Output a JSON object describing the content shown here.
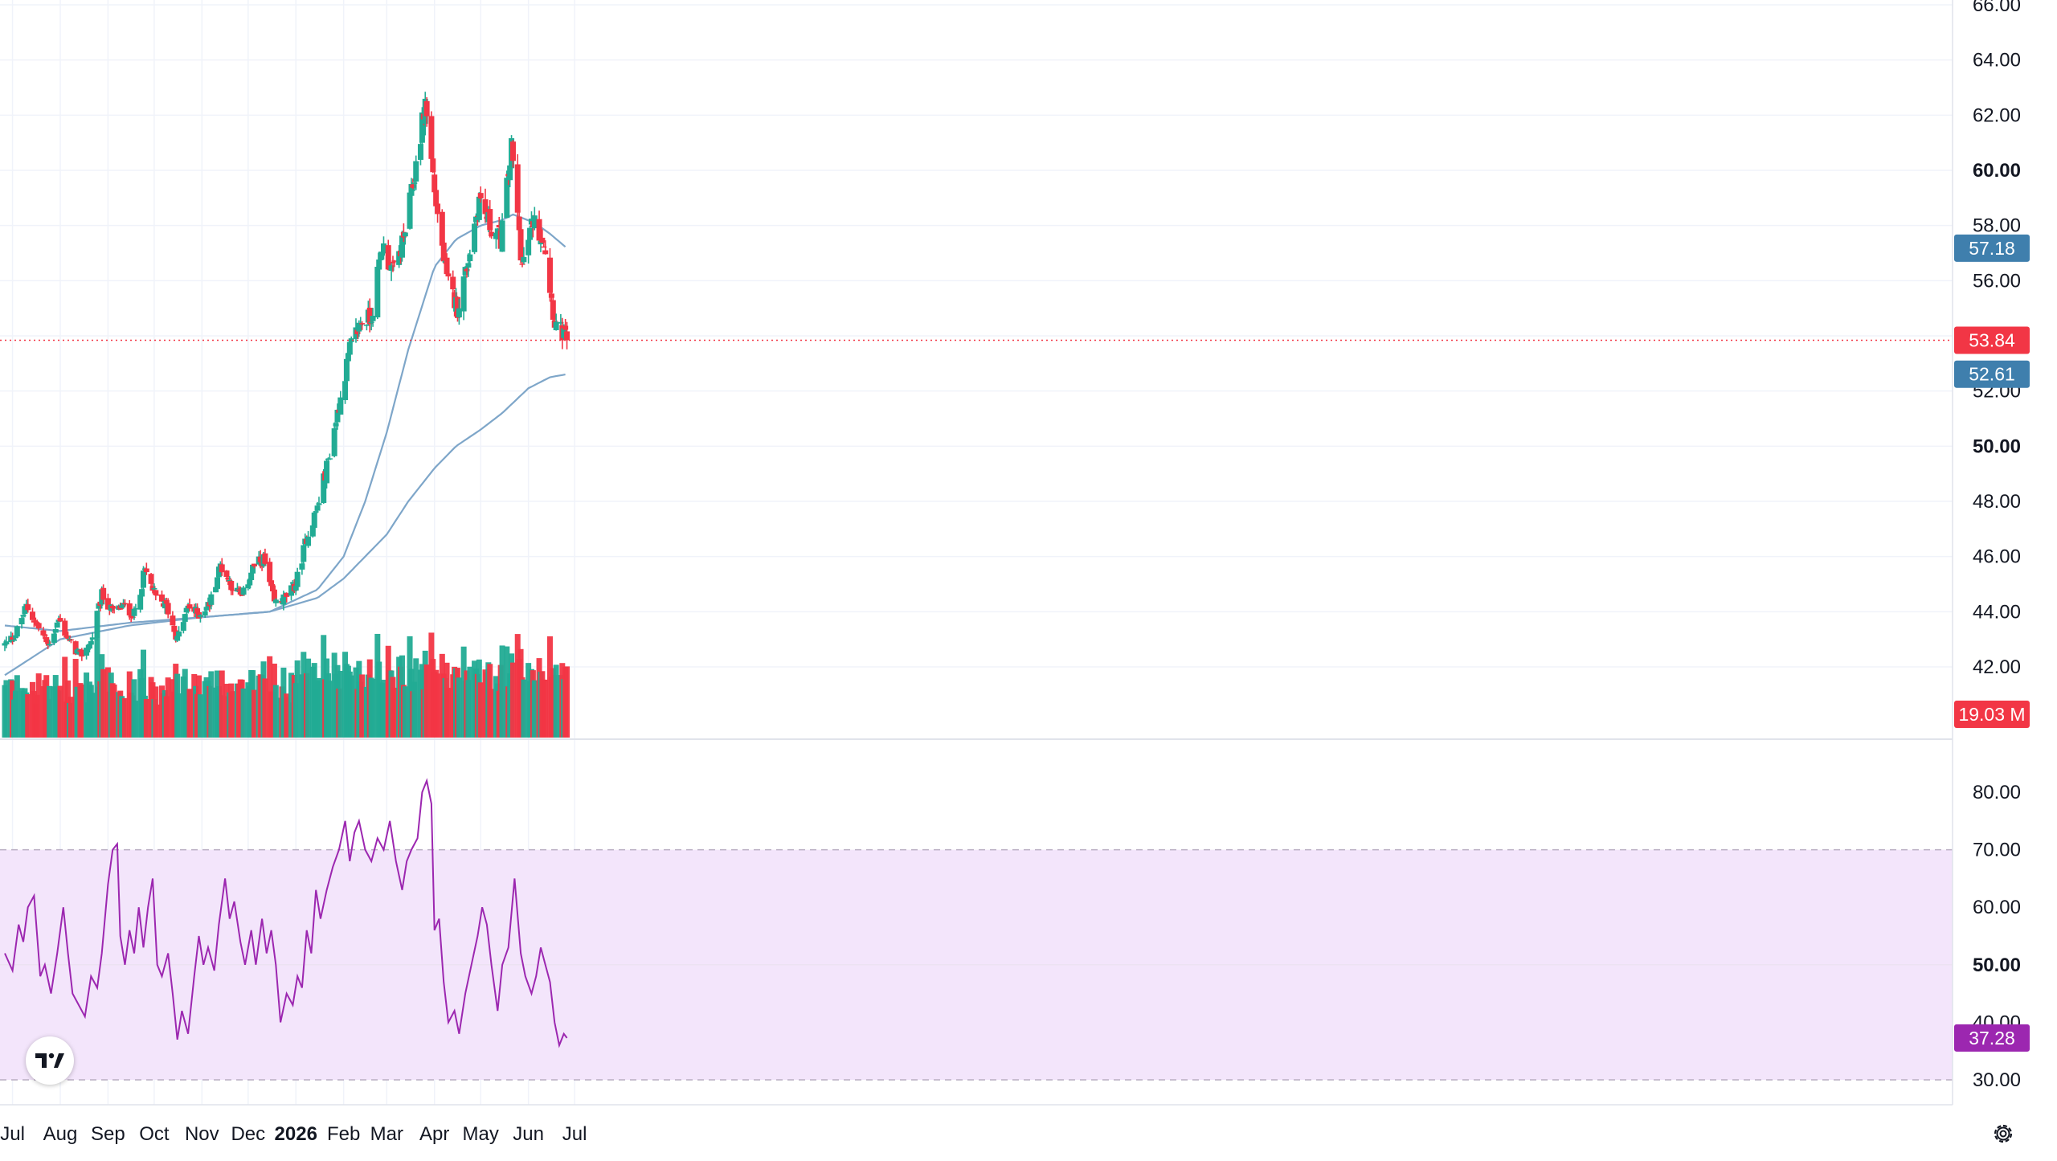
{
  "chart_data": [
    {
      "type": "candlestick",
      "title": "",
      "xlabel": "",
      "ylabel": "",
      "ylim": [
        40.5,
        66.0
      ],
      "grid": true,
      "y_ticks": [
        "66.00",
        "64.00",
        "62.00",
        "60.00",
        "58.00",
        "56.00",
        "54.00",
        "52.00",
        "50.00",
        "48.00",
        "46.00",
        "44.00",
        "42.00"
      ],
      "y_ticks_bold": [
        "60.00",
        "50.00"
      ],
      "x_ticks": [
        {
          "label": "Jul",
          "x": "2025-07-01",
          "bold": false
        },
        {
          "label": "Aug",
          "x": "2025-08-01",
          "bold": false
        },
        {
          "label": "Sep",
          "x": "2025-09-01",
          "bold": false
        },
        {
          "label": "Oct",
          "x": "2025-10-01",
          "bold": false
        },
        {
          "label": "Nov",
          "x": "2025-11-01",
          "bold": false
        },
        {
          "label": "Dec",
          "x": "2025-12-01",
          "bold": false
        },
        {
          "label": "2026",
          "x": "2026-01-01",
          "bold": true
        },
        {
          "label": "Feb",
          "x": "2026-02-01",
          "bold": false
        },
        {
          "label": "Mar",
          "x": "2026-03-01",
          "bold": false
        },
        {
          "label": "Apr",
          "x": "2026-04-01",
          "bold": false
        },
        {
          "label": "May",
          "x": "2026-05-01",
          "bold": false
        },
        {
          "label": "Jun",
          "x": "2026-06-01",
          "bold": false
        },
        {
          "label": "Jul",
          "x": "2026-07-01",
          "bold": false
        }
      ],
      "close_path": [
        [
          "2025-06-26",
          42.8
        ],
        [
          "2025-07-03",
          43.2
        ],
        [
          "2025-07-10",
          44.2
        ],
        [
          "2025-07-17",
          43.5
        ],
        [
          "2025-07-24",
          42.8
        ],
        [
          "2025-07-31",
          43.7
        ],
        [
          "2025-08-07",
          42.9
        ],
        [
          "2025-08-14",
          42.4
        ],
        [
          "2025-08-21",
          42.9
        ],
        [
          "2025-08-28",
          44.6
        ],
        [
          "2025-09-04",
          44.0
        ],
        [
          "2025-09-11",
          44.2
        ],
        [
          "2025-09-18",
          43.9
        ],
        [
          "2025-09-25",
          45.5
        ],
        [
          "2025-10-02",
          44.5
        ],
        [
          "2025-10-09",
          44.2
        ],
        [
          "2025-10-16",
          43.0
        ],
        [
          "2025-10-23",
          44.2
        ],
        [
          "2025-10-30",
          43.9
        ],
        [
          "2025-11-06",
          44.3
        ],
        [
          "2025-11-13",
          45.7
        ],
        [
          "2025-11-20",
          45.0
        ],
        [
          "2025-11-27",
          44.5
        ],
        [
          "2025-12-04",
          45.6
        ],
        [
          "2025-12-11",
          45.9
        ],
        [
          "2025-12-18",
          44.3
        ],
        [
          "2025-12-25",
          44.5
        ],
        [
          "2026-01-01",
          45.0
        ],
        [
          "2026-01-08",
          46.7
        ],
        [
          "2026-01-15",
          47.8
        ],
        [
          "2026-01-22",
          49.5
        ],
        [
          "2026-01-29",
          51.5
        ],
        [
          "2026-02-05",
          53.5
        ],
        [
          "2026-02-12",
          54.5
        ],
        [
          "2026-02-19",
          54.7
        ],
        [
          "2026-02-26",
          57.3
        ],
        [
          "2026-03-05",
          56.3
        ],
        [
          "2026-03-12",
          57.5
        ],
        [
          "2026-03-19",
          59.8
        ],
        [
          "2026-03-26",
          62.5
        ],
        [
          "2026-04-02",
          58.8
        ],
        [
          "2026-04-09",
          56.0
        ],
        [
          "2026-04-16",
          55.0
        ],
        [
          "2026-04-23",
          56.8
        ],
        [
          "2026-04-30",
          59.0
        ],
        [
          "2026-05-07",
          58.0
        ],
        [
          "2026-05-14",
          57.5
        ],
        [
          "2026-05-21",
          60.8
        ],
        [
          "2026-05-28",
          56.5
        ],
        [
          "2026-06-04",
          58.2
        ],
        [
          "2026-06-11",
          57.5
        ],
        [
          "2026-06-18",
          54.5
        ],
        [
          "2026-06-26",
          53.84
        ]
      ],
      "series": [
        {
          "name": "",
          "type": "line",
          "color": "#7ea6c9",
          "values": [
            [
              "2025-06-26",
              43.5
            ],
            [
              "2025-08-01",
              43.3
            ],
            [
              "2025-09-15",
              43.6
            ],
            [
              "2025-11-01",
              43.8
            ],
            [
              "2025-12-15",
              44.0
            ],
            [
              "2026-01-15",
              44.8
            ],
            [
              "2026-02-01",
              46.0
            ],
            [
              "2026-02-15",
              48.0
            ],
            [
              "2026-03-01",
              50.5
            ],
            [
              "2026-03-15",
              53.5
            ],
            [
              "2026-04-01",
              56.5
            ],
            [
              "2026-04-15",
              57.5
            ],
            [
              "2026-05-01",
              58.0
            ],
            [
              "2026-05-15",
              58.2
            ],
            [
              "2026-05-22",
              58.4
            ],
            [
              "2026-06-05",
              58.1
            ],
            [
              "2026-06-15",
              57.7
            ],
            [
              "2026-06-26",
              57.18
            ]
          ]
        },
        {
          "name": "",
          "type": "line",
          "color": "#7ea6c9",
          "values": [
            [
              "2025-06-26",
              41.7
            ],
            [
              "2025-08-01",
              43.0
            ],
            [
              "2025-09-15",
              43.5
            ],
            [
              "2025-11-01",
              43.8
            ],
            [
              "2025-12-15",
              44.0
            ],
            [
              "2026-01-15",
              44.5
            ],
            [
              "2026-02-01",
              45.2
            ],
            [
              "2026-02-15",
              46.0
            ],
            [
              "2026-03-01",
              46.8
            ],
            [
              "2026-03-15",
              48.0
            ],
            [
              "2026-04-01",
              49.2
            ],
            [
              "2026-04-15",
              50.0
            ],
            [
              "2026-05-01",
              50.6
            ],
            [
              "2026-05-15",
              51.2
            ],
            [
              "2026-06-01",
              52.1
            ],
            [
              "2026-06-15",
              52.5
            ],
            [
              "2026-06-26",
              52.61
            ]
          ]
        }
      ],
      "price_line": 53.84,
      "labels": [
        {
          "text": "57.18",
          "value": 57.18,
          "color": "#3f7fad"
        },
        {
          "text": "53.84",
          "value": 53.84,
          "color": "#f23645"
        },
        {
          "text": "52.61",
          "value": 52.61,
          "color": "#3f7fad"
        }
      ],
      "up_color": "#22ab94",
      "down_color": "#f23645"
    },
    {
      "type": "bar",
      "title": "",
      "series_label": "19.03 M",
      "last_value": "19.03 M",
      "color_up": "#22ab94",
      "color_down": "#f23645"
    },
    {
      "type": "line",
      "title": "",
      "ylim": [
        26.7,
        86.6
      ],
      "y_ticks": [
        "80.00",
        "70.00",
        "60.00",
        "50.00",
        "40.00",
        "30.00"
      ],
      "y_ticks_bold": [
        "50.00"
      ],
      "bands": [
        30,
        70
      ],
      "band_color": "#f3e5fb",
      "line_color": "#9c27b0",
      "rsi_points": [
        [
          "2025-06-26",
          52
        ],
        [
          "2025-07-01",
          49
        ],
        [
          "2025-07-05",
          57
        ],
        [
          "2025-07-08",
          54
        ],
        [
          "2025-07-11",
          60
        ],
        [
          "2025-07-15",
          62
        ],
        [
          "2025-07-19",
          48
        ],
        [
          "2025-07-22",
          50
        ],
        [
          "2025-07-26",
          45
        ],
        [
          "2025-07-30",
          52
        ],
        [
          "2025-08-03",
          60
        ],
        [
          "2025-08-06",
          52
        ],
        [
          "2025-08-09",
          45
        ],
        [
          "2025-08-13",
          43
        ],
        [
          "2025-08-17",
          41
        ],
        [
          "2025-08-21",
          48
        ],
        [
          "2025-08-25",
          46
        ],
        [
          "2025-08-28",
          52
        ],
        [
          "2025-09-01",
          64
        ],
        [
          "2025-09-04",
          70
        ],
        [
          "2025-09-07",
          71
        ],
        [
          "2025-09-09",
          55
        ],
        [
          "2025-09-12",
          50
        ],
        [
          "2025-09-15",
          56
        ],
        [
          "2025-09-18",
          52
        ],
        [
          "2025-09-21",
          60
        ],
        [
          "2025-09-24",
          53
        ],
        [
          "2025-09-27",
          60
        ],
        [
          "2025-09-30",
          65
        ],
        [
          "2025-10-03",
          50
        ],
        [
          "2025-10-06",
          48
        ],
        [
          "2025-10-10",
          52
        ],
        [
          "2025-10-13",
          45
        ],
        [
          "2025-10-16",
          37
        ],
        [
          "2025-10-19",
          42
        ],
        [
          "2025-10-23",
          38
        ],
        [
          "2025-10-27",
          48
        ],
        [
          "2025-10-30",
          55
        ],
        [
          "2025-11-02",
          50
        ],
        [
          "2025-11-05",
          53
        ],
        [
          "2025-11-09",
          49
        ],
        [
          "2025-11-12",
          57
        ],
        [
          "2025-11-16",
          65
        ],
        [
          "2025-11-19",
          58
        ],
        [
          "2025-11-22",
          61
        ],
        [
          "2025-11-26",
          54
        ],
        [
          "2025-11-29",
          50
        ],
        [
          "2025-12-03",
          56
        ],
        [
          "2025-12-06",
          50
        ],
        [
          "2025-12-10",
          58
        ],
        [
          "2025-12-13",
          52
        ],
        [
          "2025-12-16",
          56
        ],
        [
          "2025-12-19",
          50
        ],
        [
          "2025-12-22",
          40
        ],
        [
          "2025-12-26",
          45
        ],
        [
          "2025-12-30",
          43
        ],
        [
          "2026-01-02",
          48
        ],
        [
          "2026-01-05",
          46
        ],
        [
          "2026-01-08",
          56
        ],
        [
          "2026-01-11",
          52
        ],
        [
          "2026-01-14",
          63
        ],
        [
          "2026-01-17",
          58
        ],
        [
          "2026-01-21",
          63
        ],
        [
          "2026-01-25",
          67
        ],
        [
          "2026-01-29",
          70
        ],
        [
          "2026-02-02",
          75
        ],
        [
          "2026-02-05",
          68
        ],
        [
          "2026-02-08",
          73
        ],
        [
          "2026-02-11",
          75
        ],
        [
          "2026-02-15",
          70
        ],
        [
          "2026-02-19",
          68
        ],
        [
          "2026-02-23",
          72
        ],
        [
          "2026-02-27",
          70
        ],
        [
          "2026-03-03",
          75
        ],
        [
          "2026-03-07",
          68
        ],
        [
          "2026-03-11",
          63
        ],
        [
          "2026-03-14",
          68
        ],
        [
          "2026-03-17",
          70
        ],
        [
          "2026-03-21",
          72
        ],
        [
          "2026-03-24",
          80
        ],
        [
          "2026-03-27",
          82
        ],
        [
          "2026-03-30",
          78
        ],
        [
          "2026-04-01",
          56
        ],
        [
          "2026-04-04",
          58
        ],
        [
          "2026-04-07",
          47
        ],
        [
          "2026-04-10",
          40
        ],
        [
          "2026-04-14",
          42
        ],
        [
          "2026-04-17",
          38
        ],
        [
          "2026-04-21",
          45
        ],
        [
          "2026-04-25",
          50
        ],
        [
          "2026-04-29",
          55
        ],
        [
          "2026-05-02",
          60
        ],
        [
          "2026-05-05",
          57
        ],
        [
          "2026-05-08",
          50
        ],
        [
          "2026-05-12",
          42
        ],
        [
          "2026-05-15",
          50
        ],
        [
          "2026-05-19",
          53
        ],
        [
          "2026-05-23",
          65
        ],
        [
          "2026-05-27",
          52
        ],
        [
          "2026-05-30",
          48
        ],
        [
          "2026-06-03",
          45
        ],
        [
          "2026-06-06",
          48
        ],
        [
          "2026-06-09",
          53
        ],
        [
          "2026-06-12",
          50
        ],
        [
          "2026-06-15",
          47
        ],
        [
          "2026-06-18",
          40
        ],
        [
          "2026-06-21",
          36
        ],
        [
          "2026-06-24",
          38
        ],
        [
          "2026-06-26",
          37.28
        ]
      ],
      "labels": [
        {
          "text": "37.28",
          "value": 37.28,
          "color": "#9c27b0"
        }
      ]
    }
  ],
  "icons": {
    "logo": "tradingview-logo-icon",
    "settings": "settings-gear-icon"
  }
}
